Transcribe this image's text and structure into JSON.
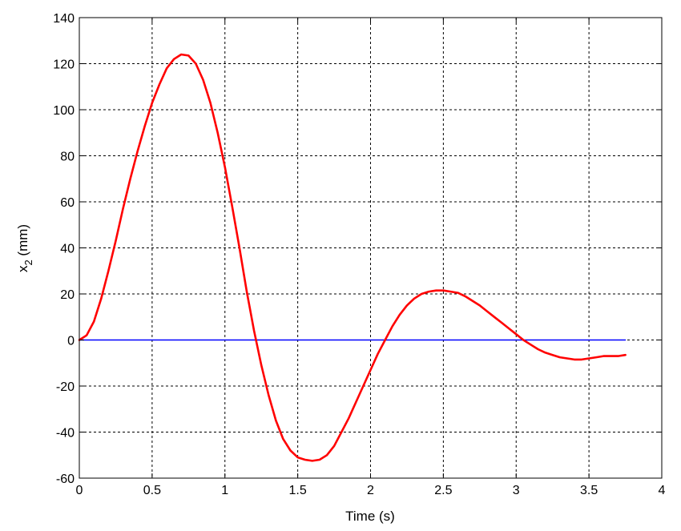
{
  "chart_data": {
    "type": "line",
    "xlabel": "Time (s)",
    "ylabel": {
      "main": "x",
      "sub": "2",
      "unit": " (mm)"
    },
    "xlim": [
      0,
      4
    ],
    "ylim": [
      -60,
      140
    ],
    "xticks": [
      0,
      0.5,
      1,
      1.5,
      2,
      2.5,
      3,
      3.5,
      4
    ],
    "xtick_labels": [
      "0",
      "0.5",
      "1",
      "1.5",
      "2",
      "2.5",
      "3",
      "3.5",
      "4"
    ],
    "yticks": [
      -60,
      -40,
      -20,
      0,
      20,
      40,
      60,
      80,
      100,
      120,
      140
    ],
    "ytick_labels": [
      "-60",
      "-40",
      "-20",
      "0",
      "20",
      "40",
      "60",
      "80",
      "100",
      "120",
      "140"
    ],
    "grid": true,
    "series": [
      {
        "color": "#ff0000",
        "x": [
          0,
          0.05,
          0.1,
          0.15,
          0.2,
          0.25,
          0.3,
          0.35,
          0.4,
          0.45,
          0.5,
          0.55,
          0.6,
          0.65,
          0.7,
          0.75,
          0.8,
          0.85,
          0.9,
          0.95,
          1.0,
          1.05,
          1.1,
          1.15,
          1.2,
          1.25,
          1.3,
          1.35,
          1.4,
          1.45,
          1.5,
          1.55,
          1.6,
          1.65,
          1.7,
          1.75,
          1.8,
          1.85,
          1.9,
          1.95,
          2.0,
          2.05,
          2.1,
          2.15,
          2.2,
          2.25,
          2.3,
          2.35,
          2.4,
          2.45,
          2.5,
          2.55,
          2.6,
          2.65,
          2.7,
          2.75,
          2.8,
          2.85,
          2.9,
          2.95,
          3.0,
          3.05,
          3.1,
          3.15,
          3.2,
          3.25,
          3.3,
          3.35,
          3.4,
          3.45,
          3.5,
          3.55,
          3.6,
          3.65,
          3.7,
          3.75
        ],
        "y": [
          0,
          2,
          8,
          18,
          30,
          43,
          57,
          70,
          82,
          93,
          103,
          111,
          118,
          122,
          124,
          123.5,
          120,
          113,
          103,
          90,
          75,
          58,
          40,
          21,
          4,
          -11,
          -24,
          -35,
          -43,
          -48,
          -51,
          -52,
          -52.5,
          -52,
          -50,
          -46,
          -40,
          -34,
          -27,
          -20,
          -13,
          -6,
          0,
          6,
          11,
          15,
          18,
          20,
          21,
          21.5,
          21.5,
          21,
          20.5,
          19,
          17,
          15,
          12.5,
          10,
          7.5,
          5,
          2.5,
          0,
          -2,
          -4,
          -5.5,
          -6.5,
          -7.5,
          -8,
          -8.5,
          -8.5,
          -8,
          -7.5,
          -7,
          -7,
          -7,
          -6.5
        ]
      },
      {
        "color": "#0000ff",
        "x": [
          0,
          3.75
        ],
        "y": [
          0,
          0
        ]
      }
    ]
  }
}
